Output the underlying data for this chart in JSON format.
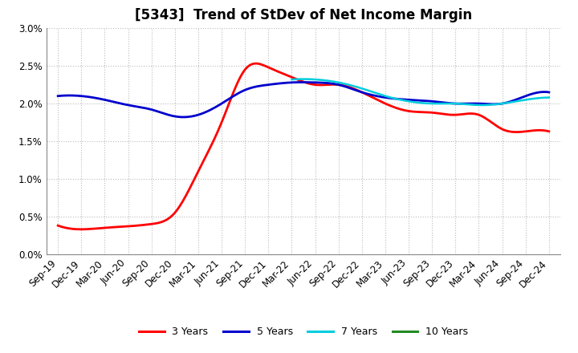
{
  "title": "[5343]  Trend of StDev of Net Income Margin",
  "ylim": [
    0.0,
    0.03
  ],
  "yticks": [
    0.0,
    0.005,
    0.01,
    0.015,
    0.02,
    0.025,
    0.03
  ],
  "x_labels": [
    "Sep-19",
    "Dec-19",
    "Mar-20",
    "Jun-20",
    "Sep-20",
    "Dec-20",
    "Mar-21",
    "Jun-21",
    "Sep-21",
    "Dec-21",
    "Mar-22",
    "Jun-22",
    "Sep-22",
    "Dec-22",
    "Mar-23",
    "Jun-23",
    "Sep-23",
    "Dec-23",
    "Mar-24",
    "Jun-24",
    "Sep-24",
    "Dec-24"
  ],
  "series": {
    "3 Years": {
      "color": "#FF0000",
      "linewidth": 2.0,
      "values": [
        0.0038,
        0.0033,
        0.0035,
        0.0037,
        0.004,
        0.0055,
        0.011,
        0.0175,
        0.0245,
        0.0248,
        0.0235,
        0.0225,
        0.0225,
        0.0215,
        0.02,
        0.019,
        0.0188,
        0.0185,
        0.0185,
        0.0166,
        0.0163,
        0.0163
      ]
    },
    "5 Years": {
      "color": "#0000CD",
      "linewidth": 2.0,
      "values": [
        0.021,
        0.021,
        0.0205,
        0.0198,
        0.0192,
        0.0183,
        0.0185,
        0.02,
        0.0218,
        0.0225,
        0.0228,
        0.0228,
        0.0225,
        0.0215,
        0.0208,
        0.0205,
        0.0203,
        0.02,
        0.02,
        0.02,
        0.021,
        0.0215
      ]
    },
    "7 Years": {
      "color": "#00CCDD",
      "linewidth": 1.8,
      "values": [
        null,
        null,
        null,
        null,
        null,
        null,
        null,
        null,
        null,
        null,
        0.0232,
        0.0232,
        0.0228,
        0.022,
        0.021,
        0.0203,
        0.02,
        0.02,
        0.0198,
        0.02,
        0.0205,
        0.0208
      ]
    },
    "10 Years": {
      "color": "#228B22",
      "linewidth": 1.8,
      "values": [
        null,
        null,
        null,
        null,
        null,
        null,
        null,
        null,
        null,
        null,
        null,
        null,
        null,
        null,
        null,
        null,
        null,
        null,
        null,
        null,
        null,
        null
      ]
    }
  },
  "legend_labels": [
    "3 Years",
    "5 Years",
    "7 Years",
    "10 Years"
  ],
  "legend_colors": [
    "#FF0000",
    "#0000CD",
    "#00CCDD",
    "#228B22"
  ],
  "background_color": "#FFFFFF",
  "plot_bg_color": "#FFFFFF",
  "grid_color": "#BBBBBB",
  "title_fontsize": 12,
  "tick_fontsize": 8.5
}
